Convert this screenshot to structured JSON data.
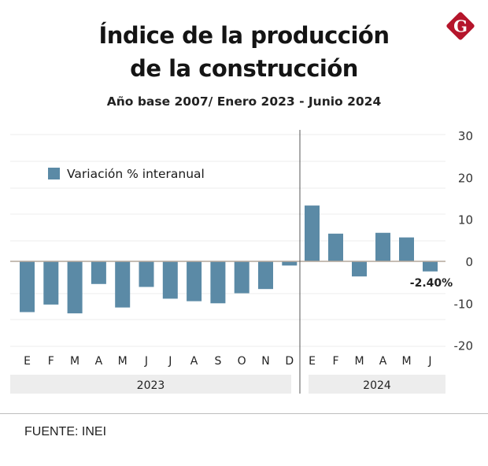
{
  "header": {
    "title_line1": "Índice de la producción",
    "title_line2": "de la construcción",
    "subtitle": "Año base 2007/ Enero 2023 - Junio 2024"
  },
  "logo": {
    "icon": "g-logo-icon",
    "letter": "G",
    "color": "#b5152b"
  },
  "footer": {
    "source": "FUENTE: INEI"
  },
  "colors": {
    "bar": "#5b8aa6",
    "zero_line": "#b4a79b",
    "grid": "#ececec",
    "year_band": "#ededed",
    "separator": "#555555"
  },
  "chart_data": {
    "type": "bar",
    "title": "Índice de la producción de la construcción",
    "subtitle": "Año base 2007/ Enero 2023 - Junio 2024",
    "xlabel": "",
    "ylabel": "",
    "ylim": [
      -20,
      30
    ],
    "yticks": [
      30,
      20,
      10,
      0,
      -10,
      -20
    ],
    "grid": true,
    "legend": {
      "placement": "top-left",
      "entries": [
        "Variación % interanual"
      ]
    },
    "groups": [
      {
        "label": "2023",
        "categories": [
          "E",
          "F",
          "M",
          "A",
          "M",
          "J",
          "J",
          "A",
          "S",
          "O",
          "N",
          "D"
        ]
      },
      {
        "label": "2024",
        "categories": [
          "E",
          "F",
          "M",
          "A",
          "M",
          "J"
        ]
      }
    ],
    "series": [
      {
        "name": "Variación % interanual",
        "values_2023": [
          -12.1,
          -10.3,
          -12.4,
          -5.4,
          -11.0,
          -6.1,
          -8.9,
          -9.5,
          -10.0,
          -7.6,
          -6.6,
          -1.0
        ],
        "values_2024": [
          13.3,
          6.6,
          -3.6,
          6.8,
          5.7,
          -2.4
        ]
      }
    ],
    "annotations": [
      {
        "text": "-2.40%",
        "group": "2024",
        "category_index": 5
      }
    ]
  }
}
